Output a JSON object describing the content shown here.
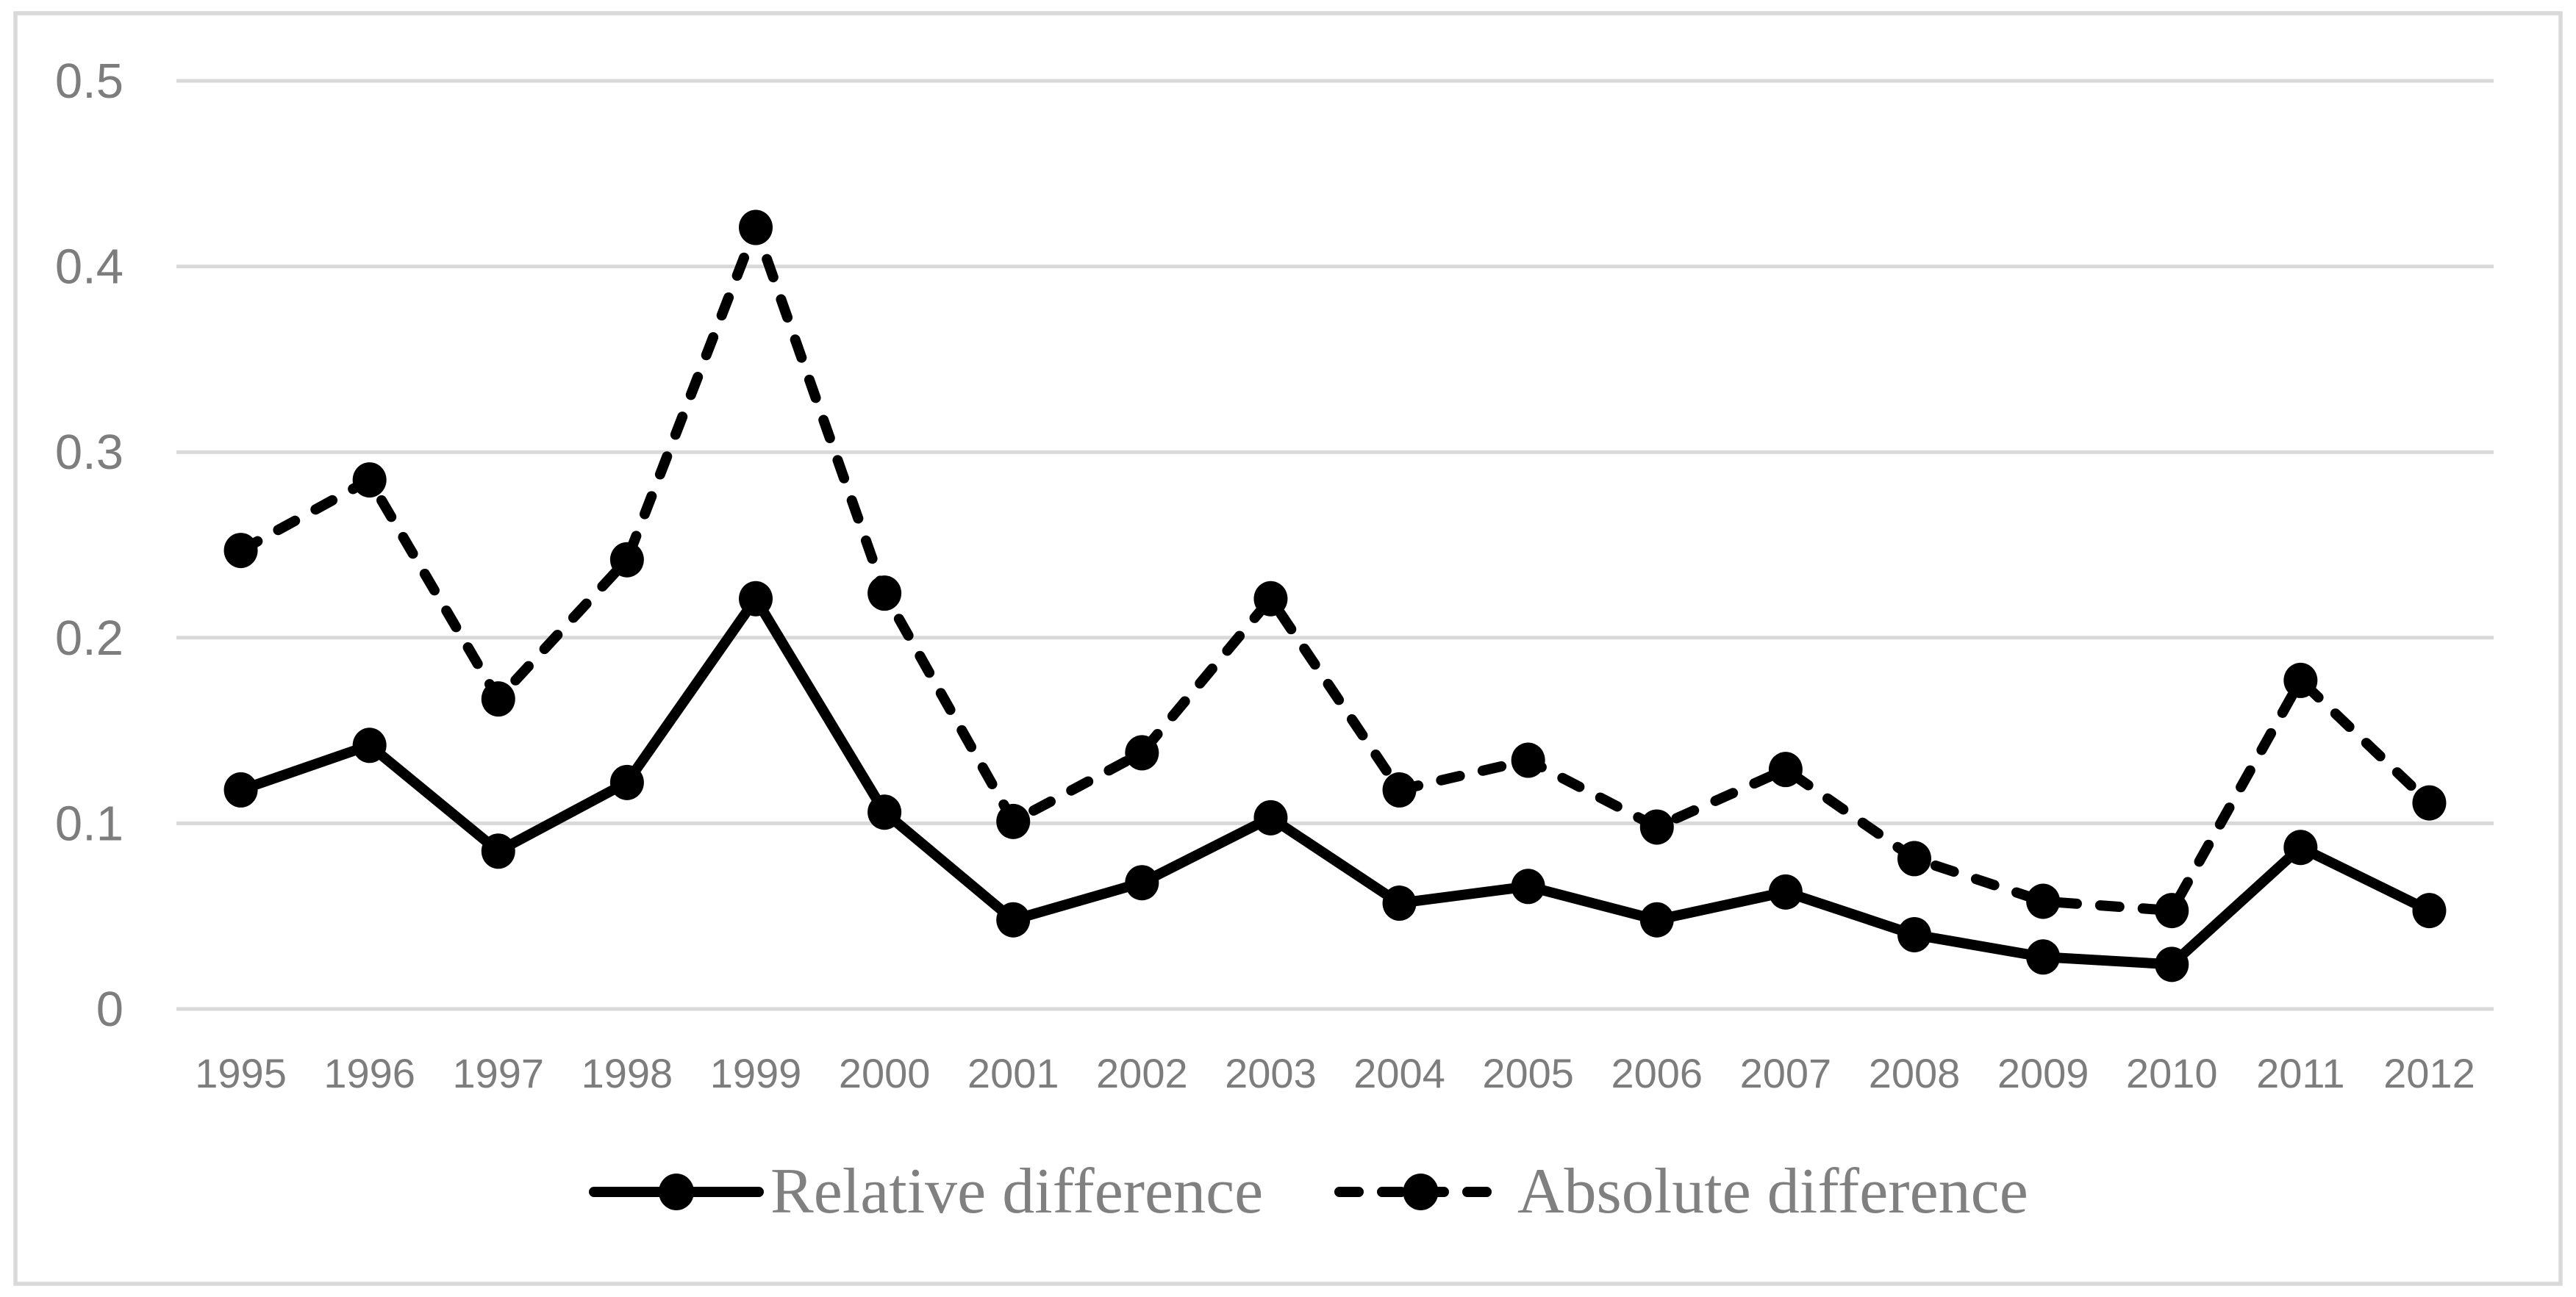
{
  "chart_data": {
    "type": "line",
    "title": "",
    "xlabel": "",
    "ylabel": "",
    "categories": [
      "1995",
      "1996",
      "1997",
      "1998",
      "1999",
      "2000",
      "2001",
      "2002",
      "2003",
      "2004",
      "2005",
      "2006",
      "2007",
      "2008",
      "2009",
      "2010",
      "2011",
      "2012"
    ],
    "series": [
      {
        "name": "Relative difference",
        "line_style": "solid",
        "marker": "circle",
        "values": [
          0.118,
          0.142,
          0.085,
          0.122,
          0.221,
          0.106,
          0.048,
          0.068,
          0.103,
          0.057,
          0.066,
          0.048,
          0.063,
          0.04,
          0.028,
          0.024,
          0.087,
          0.053
        ]
      },
      {
        "name": "Absolute difference",
        "line_style": "dashed",
        "marker": "circle",
        "values": [
          0.247,
          0.285,
          0.167,
          0.242,
          0.421,
          0.224,
          0.101,
          0.138,
          0.221,
          0.118,
          0.134,
          0.098,
          0.129,
          0.081,
          0.058,
          0.053,
          0.177,
          0.111
        ]
      }
    ],
    "y_axis": {
      "min": 0,
      "max": 0.5,
      "ticks": [
        {
          "value": 0.5,
          "label": "0.5"
        },
        {
          "value": 0.4,
          "label": "0.4"
        },
        {
          "value": 0.3,
          "label": "0.3"
        },
        {
          "value": 0.2,
          "label": "0.2"
        },
        {
          "value": 0.1,
          "label": "0.1"
        },
        {
          "value": 0,
          "label": "0"
        }
      ]
    },
    "grid": true,
    "legend_position": "bottom",
    "colors": {
      "series": "#000000",
      "grid": "#d9d9d9",
      "border": "#d9d9d9",
      "tick_label": "#7d7d7d",
      "legend_text": "#808080",
      "background": "#ffffff"
    }
  }
}
